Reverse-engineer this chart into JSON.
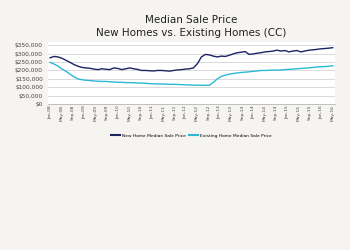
{
  "title_line1": "Median Sale Price",
  "title_line2": "New Homes vs. Existing Homes (CC)",
  "title_fontsize": 7.5,
  "bg_color": "#f5f4f1",
  "plot_bg_color": "#ffffff",
  "new_home_color": "#1c2462",
  "existing_home_color": "#2ab8d4",
  "ylim": [
    0,
    370000
  ],
  "yticks": [
    0,
    50000,
    100000,
    150000,
    200000,
    250000,
    300000,
    350000
  ],
  "legend_labels": [
    "New Home Median Sale Price",
    "Existing Home Median Sale Price"
  ],
  "x_labels": [
    "Jan-08",
    "May-08",
    "Sep-08",
    "Jan-09",
    "May-09",
    "Sep-09",
    "Jan-10",
    "May-10",
    "Sep-10",
    "Jan-11",
    "May-11",
    "Sep-11",
    "Jan-12",
    "May-12",
    "Sep-12",
    "Jan-13",
    "May-13",
    "Sep-13",
    "Jan-14",
    "May-14",
    "Sep-14",
    "Jan-15",
    "May-15",
    "Sep-15",
    "Jan-16",
    "May-16"
  ],
  "new_home_values": [
    275000,
    283000,
    280000,
    272000,
    260000,
    248000,
    235000,
    225000,
    218000,
    215000,
    213000,
    208000,
    205000,
    210000,
    207000,
    205000,
    215000,
    212000,
    205000,
    210000,
    215000,
    210000,
    206000,
    200000,
    200000,
    198000,
    197000,
    200000,
    200000,
    198000,
    196000,
    200000,
    203000,
    205000,
    208000,
    210000,
    215000,
    240000,
    280000,
    295000,
    292000,
    285000,
    280000,
    285000,
    283000,
    290000,
    298000,
    305000,
    308000,
    312000,
    295000,
    298000,
    302000,
    305000,
    310000,
    312000,
    315000,
    320000,
    315000,
    318000,
    310000,
    315000,
    318000,
    310000,
    315000,
    320000,
    322000,
    325000,
    328000,
    330000,
    332000,
    335000
  ],
  "existing_home_values": [
    248000,
    238000,
    225000,
    208000,
    195000,
    178000,
    162000,
    150000,
    145000,
    142000,
    140000,
    138000,
    136000,
    135000,
    135000,
    133000,
    131000,
    130000,
    130000,
    128000,
    128000,
    127000,
    126000,
    125000,
    124000,
    122000,
    121000,
    120000,
    120000,
    119000,
    118000,
    118000,
    117000,
    116000,
    115000,
    114000,
    113000,
    113000,
    112000,
    112000,
    112000,
    130000,
    150000,
    165000,
    172000,
    178000,
    182000,
    185000,
    188000,
    190000,
    192000,
    195000,
    197000,
    200000,
    200000,
    201000,
    202000,
    202000,
    203000,
    205000,
    207000,
    208000,
    210000,
    212000,
    214000,
    215000,
    218000,
    220000,
    222000,
    223000,
    225000,
    228000
  ]
}
